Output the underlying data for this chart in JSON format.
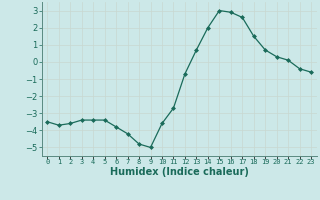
{
  "x": [
    0,
    1,
    2,
    3,
    4,
    5,
    6,
    7,
    8,
    9,
    10,
    11,
    12,
    13,
    14,
    15,
    16,
    17,
    18,
    19,
    20,
    21,
    22,
    23
  ],
  "y": [
    -3.5,
    -3.7,
    -3.6,
    -3.4,
    -3.4,
    -3.4,
    -3.8,
    -4.2,
    -4.8,
    -5.0,
    -3.6,
    -2.7,
    -0.7,
    0.7,
    2.0,
    3.0,
    2.9,
    2.6,
    1.5,
    0.7,
    0.3,
    0.1,
    -0.4,
    -0.6
  ],
  "xlabel": "Humidex (Indice chaleur)",
  "ylim": [
    -5.5,
    3.5
  ],
  "xlim": [
    -0.5,
    23.5
  ],
  "yticks": [
    -5,
    -4,
    -3,
    -2,
    -1,
    0,
    1,
    2,
    3
  ],
  "xtick_labels": [
    "0",
    "1",
    "2",
    "3",
    "4",
    "5",
    "6",
    "7",
    "8",
    "9",
    "10",
    "11",
    "12",
    "13",
    "14",
    "15",
    "16",
    "17",
    "18",
    "19",
    "20",
    "21",
    "22",
    "23"
  ],
  "line_color": "#1a6b5a",
  "marker": "D",
  "marker_size": 2.0,
  "bg_color": "#cce8e8",
  "grid_color": "#c8d8d0",
  "xlabel_color": "#1a6b5a",
  "tick_label_color": "#1a6b5a",
  "spine_color": "#5a8a80"
}
